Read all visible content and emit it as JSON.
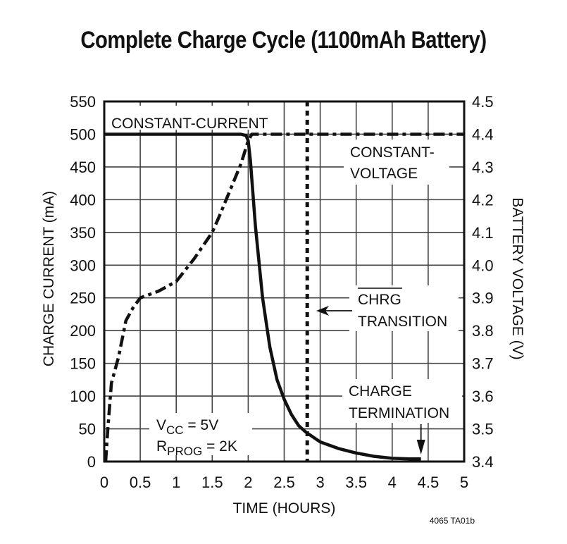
{
  "title": "Complete Charge Cycle (1100mAh Battery)",
  "figure_id": "4065 TA01b",
  "colors": {
    "line": "#111111",
    "grid": "#444444",
    "background": "#ffffff"
  },
  "chart_data": {
    "type": "line",
    "title": "Complete Charge Cycle (1100mAh Battery)",
    "xlabel": "TIME (HOURS)",
    "ylabel": "CHARGE CURRENT (mA)",
    "y2label": "BATTERY VOLTAGE (V)",
    "xlim": [
      0,
      5
    ],
    "ylim": [
      0,
      550
    ],
    "y2lim": [
      3.4,
      4.5
    ],
    "grid": true,
    "x_ticks": [
      "0",
      "0.5",
      "1",
      "1.5",
      "2",
      "2.5",
      "3",
      "3.5",
      "4",
      "4.5",
      "5"
    ],
    "y_ticks": [
      "0",
      "50",
      "100",
      "150",
      "200",
      "250",
      "300",
      "350",
      "400",
      "450",
      "500",
      "550"
    ],
    "y2_ticks": [
      "3.4",
      "3.5",
      "3.6",
      "3.7",
      "3.8",
      "3.9",
      "4.0",
      "4.1",
      "4.2",
      "4.3",
      "4.4",
      "4.5"
    ],
    "series": [
      {
        "name": "Charge Current (mA)",
        "axis": "left",
        "style": "solid",
        "x": [
          0,
          0.5,
          1.0,
          1.5,
          1.9,
          1.97,
          2.0,
          2.03,
          2.1,
          2.2,
          2.3,
          2.4,
          2.5,
          2.6,
          2.7,
          2.8,
          3.0,
          3.25,
          3.5,
          3.75,
          4.0,
          4.25,
          4.4
        ],
        "values": [
          500,
          500,
          500,
          500,
          500,
          498,
          490,
          460,
          360,
          250,
          175,
          125,
          95,
          72,
          55,
          45,
          30,
          20,
          13,
          8,
          5,
          4,
          4
        ]
      },
      {
        "name": "Battery Voltage (V)",
        "axis": "right",
        "style": "dash-dot",
        "x": [
          0.02,
          0.05,
          0.1,
          0.2,
          0.3,
          0.4,
          0.5,
          0.75,
          1.0,
          1.25,
          1.5,
          1.6,
          1.75,
          1.9,
          2.0,
          2.05,
          2.1,
          2.5,
          3.0,
          4.0,
          5.0
        ],
        "values": [
          3.4,
          3.5,
          3.64,
          3.72,
          3.83,
          3.87,
          3.9,
          3.92,
          3.95,
          4.02,
          4.1,
          4.15,
          4.23,
          4.31,
          4.38,
          4.4,
          4.4,
          4.4,
          4.4,
          4.4,
          4.4
        ]
      }
    ],
    "markers": [
      {
        "type": "vertical-dotted-line",
        "x": 2.82,
        "label": "CHRG TRANSITION"
      },
      {
        "type": "arrow-down",
        "x": 4.4,
        "label": "CHARGE TERMINATION"
      }
    ],
    "annotations": [
      {
        "text": "CONSTANT-CURRENT",
        "x": 0.05,
        "y": 525
      },
      {
        "text": "CONSTANT-VOLTAGE",
        "x": 3.4,
        "y": 465
      },
      {
        "text": "CHRG TRANSITION",
        "x": 3.5,
        "y": 235,
        "overline": "CHRG"
      },
      {
        "text": "CHARGE TERMINATION",
        "x": 3.4,
        "y": 80
      },
      {
        "text": "VCC = 5V",
        "x": 0.7,
        "y": 55
      },
      {
        "text": "RPROG = 2K",
        "x": 0.7,
        "y": 25
      }
    ]
  },
  "labels": {
    "constant_current": "CONSTANT-CURRENT",
    "constant_voltage_1": "CONSTANT-",
    "constant_voltage_2": "VOLTAGE",
    "chrg": "CHRG",
    "transition": "TRANSITION",
    "charge": "CHARGE",
    "termination": "TERMINATION",
    "vcc_main": "V",
    "vcc_sub": "CC",
    "vcc_rest": " = 5V",
    "rprog_main": "R",
    "rprog_sub": "PROG",
    "rprog_rest": " = 2K"
  }
}
